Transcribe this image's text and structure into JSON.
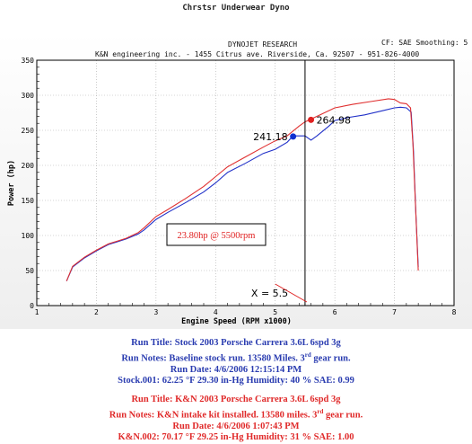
{
  "top_title": "Chrstsr Underwear Dyno",
  "header": {
    "left_title": "DYNOJET RESEARCH",
    "address": "K&N engineering inc. - 1455 Citrus ave. Riverside, Ca. 92507 - 951-826-4000",
    "right": "CF: SAE  Smoothing: 5"
  },
  "chart_data": {
    "type": "line",
    "xlabel": "Engine Speed (RPM x1000)",
    "ylabel": "Power (hp)",
    "xlim": [
      1,
      8
    ],
    "ylim": [
      0,
      350
    ],
    "xticks": [
      "1",
      "2",
      "3",
      "4",
      "5",
      "6",
      "7",
      "8"
    ],
    "yticks": [
      "0",
      "50",
      "100",
      "150",
      "200",
      "250",
      "300",
      "350"
    ],
    "grid": true,
    "series": [
      {
        "color": "#2030c8",
        "points": [
          [
            1.5,
            35
          ],
          [
            1.6,
            55
          ],
          [
            1.8,
            68
          ],
          [
            2.0,
            78
          ],
          [
            2.2,
            87
          ],
          [
            2.5,
            95
          ],
          [
            2.7,
            102
          ],
          [
            2.8,
            108
          ],
          [
            3.0,
            123
          ],
          [
            3.2,
            133
          ],
          [
            3.5,
            147
          ],
          [
            3.8,
            162
          ],
          [
            4.0,
            175
          ],
          [
            4.2,
            190
          ],
          [
            4.5,
            203
          ],
          [
            4.8,
            217
          ],
          [
            5.0,
            223
          ],
          [
            5.2,
            233
          ],
          [
            5.3,
            242
          ],
          [
            5.5,
            242
          ],
          [
            5.6,
            236
          ],
          [
            5.7,
            242
          ],
          [
            5.9,
            256
          ],
          [
            6.0,
            264
          ],
          [
            6.2,
            268
          ],
          [
            6.5,
            272
          ],
          [
            6.8,
            278
          ],
          [
            7.0,
            282
          ],
          [
            7.1,
            283
          ],
          [
            7.2,
            282
          ],
          [
            7.28,
            276
          ],
          [
            7.32,
            220
          ],
          [
            7.36,
            130
          ],
          [
            7.4,
            55
          ]
        ]
      },
      {
        "color": "#e03030",
        "points": [
          [
            1.5,
            35
          ],
          [
            1.6,
            56
          ],
          [
            1.8,
            69
          ],
          [
            2.0,
            79
          ],
          [
            2.2,
            88
          ],
          [
            2.5,
            96
          ],
          [
            2.7,
            104
          ],
          [
            2.8,
            111
          ],
          [
            3.0,
            127
          ],
          [
            3.2,
            137
          ],
          [
            3.5,
            153
          ],
          [
            3.8,
            170
          ],
          [
            4.0,
            184
          ],
          [
            4.2,
            198
          ],
          [
            4.5,
            212
          ],
          [
            4.8,
            226
          ],
          [
            5.0,
            235
          ],
          [
            5.2,
            242
          ],
          [
            5.4,
            256
          ],
          [
            5.5,
            262
          ],
          [
            5.6,
            266
          ],
          [
            5.8,
            274
          ],
          [
            6.0,
            282
          ],
          [
            6.3,
            287
          ],
          [
            6.6,
            291
          ],
          [
            6.9,
            295
          ],
          [
            7.0,
            294
          ],
          [
            7.1,
            289
          ],
          [
            7.2,
            288
          ],
          [
            7.27,
            282
          ],
          [
            7.31,
            230
          ],
          [
            7.35,
            150
          ],
          [
            7.4,
            50
          ]
        ]
      }
    ],
    "markers": [
      {
        "x": 5.3,
        "y": 241.18,
        "label": "241.18",
        "color": "#1030d0",
        "label_side": "left"
      },
      {
        "x": 5.6,
        "y": 264.98,
        "label": "264.98",
        "color": "#e02020",
        "label_side": "right"
      }
    ],
    "cursor_x": 5.5,
    "cursor_label": "X = 5.5",
    "annotation": "23.80hp @ 5500rpm"
  },
  "run_blue": {
    "color": "#2a3cb0",
    "title": "Run Title: Stock 2003 Porsche Carrera 3.6L 6spd 3g",
    "notes_pre": "Run Notes: Baseline stock run. 13580 Miles. 3",
    "notes_sup": "rd",
    "notes_post": " gear run.",
    "date": "Run Date: 4/6/2006 12:15:14 PM",
    "conditions": "Stock.001: 62.25 °F 29.30 in-Hg Humidity: 40 % SAE: 0.99"
  },
  "run_red": {
    "color": "#e02a2a",
    "title": "Run Title: K&N 2003 Porsche Carrera 3.6L 6spd 3g",
    "notes_pre": "Run Notes: K&N intake kit installed. 13580 miles. 3",
    "notes_sup": "rd",
    "notes_post": " gear run.",
    "date": "Run Date: 4/6/2006 1:07:43 PM",
    "conditions": "K&N.002: 70.17 °F 29.25 in-Hg Humidity: 31 % SAE: 1.00"
  }
}
